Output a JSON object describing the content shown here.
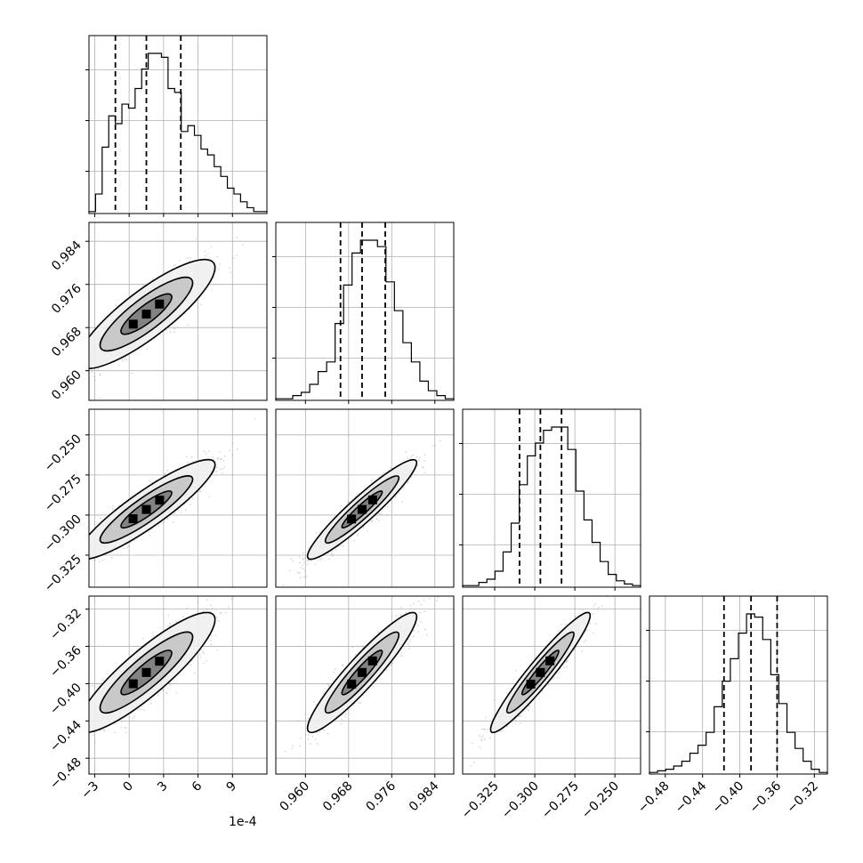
{
  "chart_data": {
    "type": "corner",
    "grid": true,
    "offset_text": "1e-4",
    "params": [
      {
        "index": 0,
        "range": [
          -3.5,
          12.0
        ],
        "ticks": [
          -3,
          0,
          3,
          6,
          9
        ],
        "tick_labels": [
          "−3",
          "0",
          "3",
          "6",
          "9"
        ],
        "quantiles": [
          -1.2,
          1.5,
          4.5
        ],
        "hist": [
          1,
          10,
          34,
          50,
          46,
          56,
          54,
          64,
          74,
          82,
          82,
          80,
          64,
          62,
          42,
          45,
          40,
          33,
          30,
          24,
          19,
          13,
          10,
          6,
          3,
          1,
          1
        ]
      },
      {
        "index": 1,
        "range": [
          0.9545,
          0.9875
        ],
        "ticks": [
          0.96,
          0.968,
          0.976,
          0.984
        ],
        "tick_labels": [
          "0.960",
          "0.968",
          "0.976",
          "0.984"
        ],
        "quantiles": [
          0.9665,
          0.9705,
          0.9748
        ],
        "hist": [
          1,
          1,
          3,
          5,
          10,
          18,
          24,
          48,
          72,
          92,
          100,
          100,
          96,
          74,
          56,
          36,
          24,
          12,
          6,
          3,
          1
        ]
      },
      {
        "index": 2,
        "range": [
          -0.345,
          -0.234
        ],
        "ticks": [
          -0.325,
          -0.3,
          -0.275,
          -0.25
        ],
        "tick_labels": [
          "−0.325",
          "−0.300",
          "−0.275",
          "−0.250"
        ],
        "quantiles": [
          -0.3095,
          -0.2965,
          -0.2833
        ],
        "hist": [
          1,
          1,
          3,
          5,
          10,
          22,
          40,
          64,
          82,
          90,
          98,
          100,
          100,
          86,
          60,
          42,
          28,
          16,
          8,
          4,
          2,
          1
        ]
      },
      {
        "index": 3,
        "range": [
          -0.497,
          -0.306
        ],
        "ticks": [
          -0.48,
          -0.44,
          -0.4,
          -0.36,
          -0.32
        ],
        "tick_labels": [
          "−0.48",
          "−0.44",
          "−0.40",
          "−0.36",
          "−0.32"
        ],
        "quantiles": [
          -0.417,
          -0.388,
          -0.36
        ],
        "hist": [
          1,
          2,
          3,
          5,
          8,
          13,
          18,
          26,
          42,
          58,
          72,
          88,
          100,
          98,
          84,
          62,
          44,
          26,
          16,
          8,
          3,
          1
        ]
      }
    ],
    "pairs": [
      {
        "x": 0,
        "y": 1,
        "mean": [
          1.5,
          0.9705
        ],
        "sd": [
          2.6,
          0.0044
        ],
        "rho": 0.85
      },
      {
        "x": 0,
        "y": 2,
        "mean": [
          1.5,
          -0.2965
        ],
        "sd": [
          2.6,
          0.0135
        ],
        "rho": 0.9
      },
      {
        "x": 1,
        "y": 2,
        "mean": [
          0.9705,
          -0.2965
        ],
        "sd": [
          0.0044,
          0.0135
        ],
        "rho": 0.94
      },
      {
        "x": 0,
        "y": 3,
        "mean": [
          1.5,
          -0.388
        ],
        "sd": [
          2.6,
          0.028
        ],
        "rho": 0.88
      },
      {
        "x": 1,
        "y": 3,
        "mean": [
          0.9705,
          -0.388
        ],
        "sd": [
          0.0044,
          0.028
        ],
        "rho": 0.93
      },
      {
        "x": 2,
        "y": 3,
        "mean": [
          -0.2965,
          -0.388
        ],
        "sd": [
          0.0135,
          0.028
        ],
        "rho": 0.95
      }
    ]
  }
}
